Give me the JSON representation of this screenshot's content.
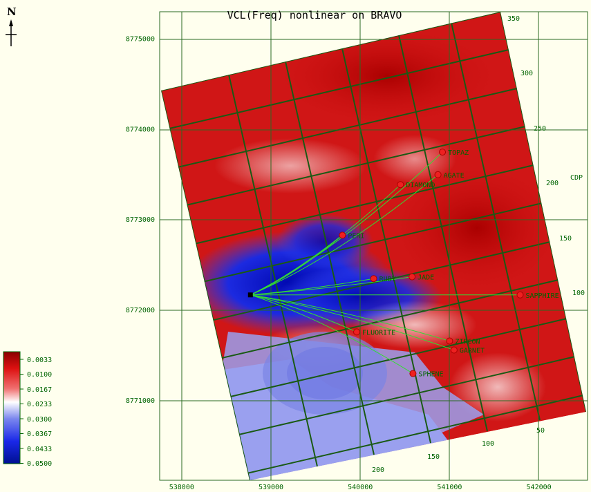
{
  "title": "VCL(Freq) nonlinear on BRAVO",
  "north_label": "N",
  "cdp_label": "CDP",
  "colors": {
    "high": "#cc0000",
    "mid": "#ffffff",
    "low": "#0010cc",
    "grid": "#1a5a14",
    "frame": "#2a6a22",
    "wells": "#ee2020",
    "paths": "#33dd33"
  },
  "x_axis": {
    "ticks": [
      {
        "v": 538000,
        "label": "538000"
      },
      {
        "v": 539000,
        "label": "539000"
      },
      {
        "v": 540000,
        "label": "540000"
      },
      {
        "v": 541000,
        "label": "541000"
      },
      {
        "v": 542000,
        "label": "542000"
      }
    ]
  },
  "y_axis": {
    "ticks": [
      {
        "v": 8775000,
        "label": "8775000"
      },
      {
        "v": 8774000,
        "label": "8774000"
      },
      {
        "v": 8773000,
        "label": "8773000"
      },
      {
        "v": 8772000,
        "label": "8772000"
      },
      {
        "v": 8771000,
        "label": "8771000"
      }
    ]
  },
  "cdp_axis": {
    "labels": [
      "350",
      "300",
      "250",
      "200",
      "150",
      "100"
    ]
  },
  "bottom_axis": {
    "labels": [
      "50",
      "100",
      "150",
      "200"
    ]
  },
  "colorbar": {
    "labels": [
      "0.0033",
      "0.0100",
      "0.0167",
      "0.0233",
      "0.0300",
      "0.0367",
      "0.0433",
      "0.0500"
    ]
  },
  "wells": [
    {
      "name": "PERIDOT",
      "display": "PERI",
      "x": 539800,
      "y": 8772830
    },
    {
      "name": "RUBY",
      "display": "RUBY",
      "x": 540150,
      "y": 8772350
    },
    {
      "name": "JADE",
      "display": "JADE",
      "x": 540580,
      "y": 8772370
    },
    {
      "name": "SAPPHIRE",
      "display": "SAPPHIRE",
      "x": 541790,
      "y": 8772170
    },
    {
      "name": "FLUORITE",
      "display": "FLUORITE",
      "x": 539960,
      "y": 8771760
    },
    {
      "name": "ZIRCON",
      "display": "ZIRCON",
      "x": 541000,
      "y": 8771660
    },
    {
      "name": "GARNET",
      "display": "GARNET",
      "x": 541050,
      "y": 8771560
    },
    {
      "name": "SPHENE",
      "display": "SPHENE",
      "x": 540590,
      "y": 8771300
    },
    {
      "name": "DIAMOND",
      "display": "DIAMOND",
      "x": 540450,
      "y": 8773390
    },
    {
      "name": "AGATE",
      "display": "AGATE",
      "x": 540870,
      "y": 8773500
    },
    {
      "name": "TOPAZ",
      "display": "TOPAZ",
      "x": 540920,
      "y": 8773750
    }
  ],
  "platform": {
    "x": 538770,
    "y": 8772170
  }
}
